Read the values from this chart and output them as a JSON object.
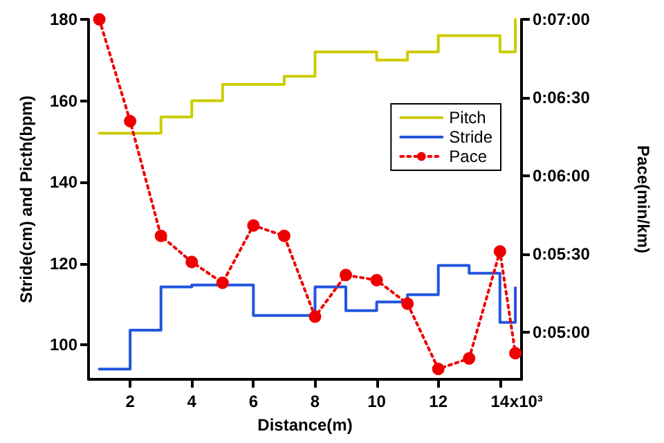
{
  "chart_data": {
    "type": "line",
    "xlabel": "Distance(m)",
    "ylabel": "Stride(cm) and Picth(bpm)",
    "y2label": "Pace(min/km)",
    "xlim": [
      0.65,
      14.7
    ],
    "xticks": [
      2,
      4,
      6,
      8,
      10,
      12,
      14
    ],
    "annotations": [
      "x10³"
    ],
    "ylim": [
      91.5,
      180
    ],
    "yticks": [
      100,
      120,
      140,
      160,
      180
    ],
    "y2lim": [
      282,
      420
    ],
    "y2ticks": [
      {
        "value": 300,
        "label": "0:05:00"
      },
      {
        "value": 330,
        "label": "0:05:30"
      },
      {
        "value": 360,
        "label": "0:06:00"
      },
      {
        "value": 390,
        "label": "0:06:30"
      },
      {
        "value": 420,
        "label": "0:07:00"
      }
    ],
    "grid": false,
    "legend": "right",
    "series": [
      {
        "name": "Pitch",
        "type": "step",
        "color": "#cccc00",
        "marker": "none",
        "line_style": "solid",
        "x": [
          1,
          3,
          4,
          5,
          7,
          8,
          10,
          11,
          12,
          14,
          14.5
        ],
        "values": [
          152,
          156,
          160,
          164,
          166,
          172,
          170,
          172,
          176,
          172,
          180
        ]
      },
      {
        "name": "Stride",
        "type": "step",
        "color": "#2255dd",
        "marker": "none",
        "line_style": "solid",
        "x": [
          1,
          2,
          3,
          4,
          6,
          8,
          9,
          10,
          11,
          12,
          13,
          14,
          14.5
        ],
        "values": [
          94,
          103.6,
          114.2,
          114.7,
          107.2,
          114.2,
          108.4,
          110.5,
          112.3,
          119.5,
          117.6,
          105.5,
          114
        ]
      },
      {
        "name": "Pace",
        "axis": "y2",
        "color": "#ee0000",
        "marker": "circle",
        "line_style": "dotted",
        "x": [
          1,
          2,
          3,
          4,
          5,
          6,
          7,
          8,
          9,
          10,
          11,
          12,
          13,
          14,
          14.5
        ],
        "values": [
          420,
          381,
          337,
          327,
          319,
          341,
          337,
          306,
          322,
          320,
          311,
          286,
          290,
          331,
          292
        ]
      }
    ]
  }
}
